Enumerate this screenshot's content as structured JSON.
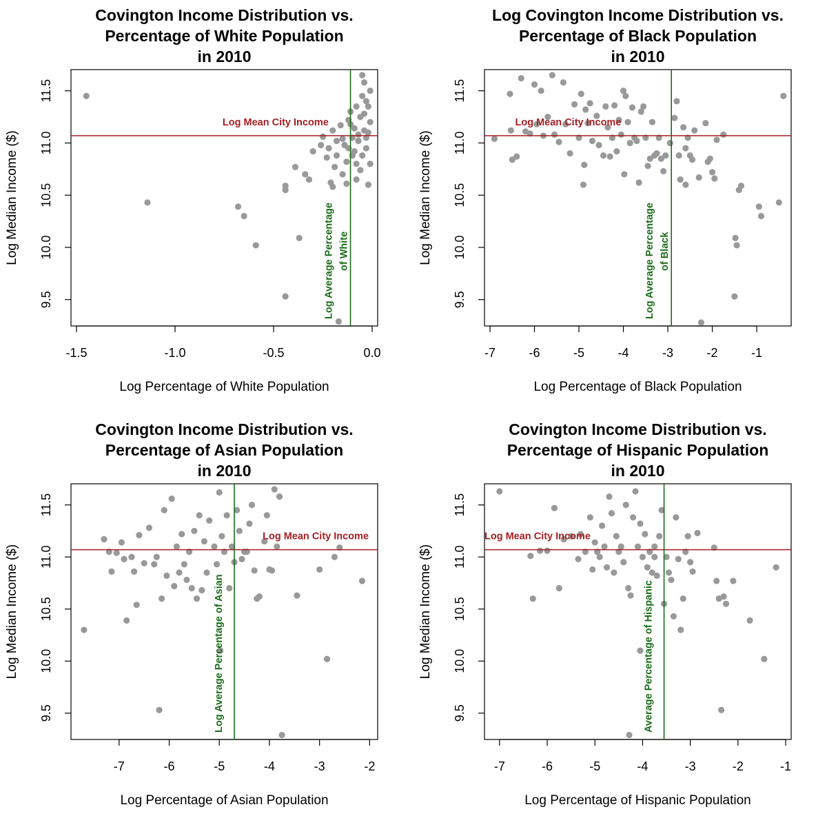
{
  "chart_data": [
    {
      "type": "scatter",
      "title": [
        "Covington Income Distribution vs.",
        "Percentage of White Population",
        "in 2010"
      ],
      "xlabel": "Log Percentage of White Population",
      "ylabel": "Log Median Income ($)",
      "xlim": [
        -1.5,
        0.0
      ],
      "ylim": [
        9.3,
        11.65
      ],
      "xticks": [
        -1.5,
        -1.0,
        -0.5,
        0.0
      ],
      "xtick_labels": [
        "-1.5",
        "-1.0",
        "-0.5",
        "0.0"
      ],
      "yticks": [
        9.5,
        10.0,
        10.5,
        11.0,
        11.5
      ],
      "ytick_labels": [
        "9.5",
        "10.0",
        "10.5",
        "11.0",
        "11.5"
      ],
      "hline": {
        "y": 11.07,
        "label": "Log Mean City Income"
      },
      "vline": {
        "x": -0.11,
        "label": [
          "Log Average Percentage",
          "of White"
        ]
      },
      "point_color": "#999999",
      "hline_color": "#a51e22",
      "vline_color": "#1a6b1a",
      "points": [
        [
          -1.45,
          11.45
        ],
        [
          -1.14,
          10.43
        ],
        [
          -0.68,
          10.39
        ],
        [
          -0.65,
          10.3
        ],
        [
          -0.59,
          10.02
        ],
        [
          -0.44,
          10.59
        ],
        [
          -0.44,
          10.55
        ],
        [
          -0.44,
          9.53
        ],
        [
          -0.37,
          10.09
        ],
        [
          -0.39,
          10.77
        ],
        [
          -0.34,
          10.7
        ],
        [
          -0.32,
          10.65
        ],
        [
          -0.3,
          10.92
        ],
        [
          -0.26,
          10.98
        ],
        [
          -0.25,
          11.06
        ],
        [
          -0.23,
          10.86
        ],
        [
          -0.22,
          10.95
        ],
        [
          -0.21,
          10.62
        ],
        [
          -0.2,
          10.58
        ],
        [
          -0.2,
          11.12
        ],
        [
          -0.19,
          10.77
        ],
        [
          -0.18,
          10.88
        ],
        [
          -0.17,
          9.29
        ],
        [
          -0.16,
          11.17
        ],
        [
          -0.15,
          11.04
        ],
        [
          -0.14,
          10.98
        ],
        [
          -0.13,
          10.82
        ],
        [
          -0.13,
          10.61
        ],
        [
          -0.12,
          11.22
        ],
        [
          -0.11,
          11.3
        ],
        [
          -0.1,
          10.88
        ],
        [
          -0.09,
          11.14
        ],
        [
          -0.08,
          11.35
        ],
        [
          -0.08,
          10.65
        ],
        [
          -0.07,
          11.02
        ],
        [
          -0.06,
          10.74
        ],
        [
          -0.06,
          11.25
        ],
        [
          -0.05,
          11.45
        ],
        [
          -0.05,
          10.88
        ],
        [
          -0.04,
          11.58
        ],
        [
          -0.04,
          11.12
        ],
        [
          -0.03,
          11.05
        ],
        [
          -0.03,
          10.95
        ],
        [
          -0.02,
          11.35
        ],
        [
          -0.02,
          10.6
        ],
        [
          -0.01,
          11.5
        ],
        [
          -0.01,
          11.2
        ],
        [
          -0.01,
          10.8
        ],
        [
          -0.05,
          11.65
        ],
        [
          -0.15,
          10.7
        ],
        [
          -0.12,
          10.95
        ],
        [
          -0.09,
          10.92
        ],
        [
          -0.07,
          11.08
        ],
        [
          -0.04,
          11.28
        ],
        [
          -0.02,
          11.1
        ],
        [
          -0.18,
          11.02
        ],
        [
          -0.11,
          11.18
        ],
        [
          -0.08,
          10.8
        ],
        [
          -0.03,
          11.4
        ],
        [
          -0.1,
          11.05
        ]
      ]
    },
    {
      "type": "scatter",
      "title": [
        "Log Covington Income Distribution vs.",
        "Percentage of Black Population",
        "in 2010"
      ],
      "xlabel": "Log Percentage of Black Population",
      "ylabel": "Log Median Income ($)",
      "xlim": [
        -7.0,
        -0.35
      ],
      "ylim": [
        9.3,
        11.65
      ],
      "xticks": [
        -7,
        -6,
        -5,
        -4,
        -3,
        -2,
        -1
      ],
      "xtick_labels": [
        "-7",
        "-6",
        "-5",
        "-4",
        "-3",
        "-2",
        "-1"
      ],
      "yticks": [
        9.5,
        10.0,
        10.5,
        11.0,
        11.5
      ],
      "ytick_labels": [
        "9.5",
        "10.0",
        "10.5",
        "11.0",
        "11.5"
      ],
      "hline": {
        "y": 11.07,
        "label": "Log Mean City Income"
      },
      "vline": {
        "x": -2.92,
        "label": [
          "Log Average Percentage",
          "of Black"
        ]
      },
      "point_color": "#999999",
      "hline_color": "#a51e22",
      "vline_color": "#1a6b1a",
      "points": [
        [
          -6.9,
          11.04
        ],
        [
          -6.55,
          11.47
        ],
        [
          -6.53,
          11.12
        ],
        [
          -6.5,
          10.84
        ],
        [
          -6.4,
          10.87
        ],
        [
          -6.3,
          11.62
        ],
        [
          -6.2,
          11.11
        ],
        [
          -6.1,
          11.09
        ],
        [
          -6.0,
          11.56
        ],
        [
          -5.95,
          11.18
        ],
        [
          -5.85,
          11.5
        ],
        [
          -5.8,
          11.07
        ],
        [
          -5.7,
          11.25
        ],
        [
          -5.6,
          11.65
        ],
        [
          -5.55,
          11.08
        ],
        [
          -5.45,
          11.01
        ],
        [
          -5.35,
          11.58
        ],
        [
          -5.3,
          11.18
        ],
        [
          -5.2,
          10.9
        ],
        [
          -5.1,
          11.37
        ],
        [
          -5.0,
          11.05
        ],
        [
          -4.95,
          11.47
        ],
        [
          -4.9,
          10.6
        ],
        [
          -4.88,
          10.79
        ],
        [
          -4.85,
          11.32
        ],
        [
          -4.8,
          11.19
        ],
        [
          -4.75,
          11.38
        ],
        [
          -4.7,
          11.02
        ],
        [
          -4.6,
          11.26
        ],
        [
          -4.55,
          10.98
        ],
        [
          -4.45,
          10.88
        ],
        [
          -4.4,
          11.35
        ],
        [
          -4.35,
          11.15
        ],
        [
          -4.3,
          10.87
        ],
        [
          -4.25,
          11.05
        ],
        [
          -4.2,
          11.36
        ],
        [
          -4.15,
          10.92
        ],
        [
          -4.1,
          11.22
        ],
        [
          -4.05,
          11.08
        ],
        [
          -4.0,
          11.5
        ],
        [
          -3.98,
          10.7
        ],
        [
          -3.95,
          11.45
        ],
        [
          -3.9,
          11.2
        ],
        [
          -3.85,
          11.0
        ],
        [
          -3.8,
          11.34
        ],
        [
          -3.75,
          11.05
        ],
        [
          -3.7,
          11.02
        ],
        [
          -3.65,
          10.62
        ],
        [
          -3.6,
          11.3
        ],
        [
          -3.55,
          11.35
        ],
        [
          -3.5,
          11.05
        ],
        [
          -3.45,
          10.78
        ],
        [
          -3.4,
          10.85
        ],
        [
          -3.35,
          11.2
        ],
        [
          -3.3,
          10.88
        ],
        [
          -3.25,
          10.9
        ],
        [
          -3.2,
          11.05
        ],
        [
          -3.15,
          10.85
        ],
        [
          -3.1,
          10.73
        ],
        [
          -3.05,
          10.88
        ],
        [
          -2.95,
          11.0
        ],
        [
          -2.85,
          11.24
        ],
        [
          -2.8,
          11.4
        ],
        [
          -2.75,
          10.88
        ],
        [
          -2.72,
          10.65
        ],
        [
          -2.65,
          11.15
        ],
        [
          -2.6,
          10.6
        ],
        [
          -2.55,
          11.05
        ],
        [
          -2.5,
          10.88
        ],
        [
          -2.45,
          10.84
        ],
        [
          -2.4,
          11.12
        ],
        [
          -2.3,
          10.67
        ],
        [
          -2.25,
          9.28
        ],
        [
          -2.15,
          11.19
        ],
        [
          -2.1,
          10.82
        ],
        [
          -2.0,
          10.72
        ],
        [
          -1.95,
          10.66
        ],
        [
          -1.9,
          11.03
        ],
        [
          -1.75,
          11.08
        ],
        [
          -1.5,
          9.53
        ],
        [
          -1.48,
          10.09
        ],
        [
          -1.45,
          10.02
        ],
        [
          -1.4,
          10.55
        ],
        [
          -1.35,
          10.59
        ],
        [
          -0.95,
          10.39
        ],
        [
          -0.9,
          10.3
        ],
        [
          -0.5,
          10.43
        ],
        [
          -0.4,
          11.45
        ],
        [
          -2.05,
          10.85
        ],
        [
          -2.6,
          10.95
        ]
      ]
    },
    {
      "type": "scatter",
      "title": [
        "Covington Income Distribution vs.",
        "Percentage of Asian Population",
        "in 2010"
      ],
      "xlabel": "Log Percentage of Asian Population",
      "ylabel": "Log Median Income ($)",
      "xlim": [
        -7.85,
        -1.95
      ],
      "ylim": [
        9.3,
        11.65
      ],
      "xticks": [
        -7,
        -6,
        -5,
        -4,
        -3,
        -2
      ],
      "xtick_labels": [
        "-7",
        "-6",
        "-5",
        "-4",
        "-3",
        "-2"
      ],
      "yticks": [
        9.5,
        10.0,
        10.5,
        11.0,
        11.5
      ],
      "ytick_labels": [
        "9.5",
        "10.0",
        "10.5",
        "11.0",
        "11.5"
      ],
      "hline": {
        "y": 11.07,
        "label": "Log Mean City Income"
      },
      "vline": {
        "x": -4.7,
        "label": [
          "Log Average Percentage of Asian"
        ]
      },
      "point_color": "#999999",
      "hline_color": "#a51e22",
      "vline_color": "#1a6b1a",
      "points": [
        [
          -7.7,
          10.3
        ],
        [
          -7.3,
          11.17
        ],
        [
          -7.2,
          11.05
        ],
        [
          -7.15,
          10.86
        ],
        [
          -7.05,
          11.04
        ],
        [
          -6.95,
          11.14
        ],
        [
          -6.9,
          10.98
        ],
        [
          -6.85,
          10.39
        ],
        [
          -6.75,
          11.0
        ],
        [
          -6.7,
          10.86
        ],
        [
          -6.65,
          10.54
        ],
        [
          -6.6,
          11.21
        ],
        [
          -6.5,
          10.94
        ],
        [
          -6.4,
          11.28
        ],
        [
          -6.3,
          10.93
        ],
        [
          -6.25,
          11.0
        ],
        [
          -6.2,
          9.53
        ],
        [
          -6.15,
          10.6
        ],
        [
          -6.1,
          11.45
        ],
        [
          -6.05,
          10.82
        ],
        [
          -5.95,
          11.56
        ],
        [
          -5.9,
          10.72
        ],
        [
          -5.85,
          11.1
        ],
        [
          -5.8,
          10.85
        ],
        [
          -5.75,
          11.22
        ],
        [
          -5.7,
          10.93
        ],
        [
          -5.65,
          10.78
        ],
        [
          -5.6,
          11.05
        ],
        [
          -5.55,
          10.7
        ],
        [
          -5.5,
          11.25
        ],
        [
          -5.45,
          10.6
        ],
        [
          -5.4,
          11.4
        ],
        [
          -5.35,
          10.68
        ],
        [
          -5.3,
          11.15
        ],
        [
          -5.25,
          10.85
        ],
        [
          -5.2,
          11.35
        ],
        [
          -5.1,
          11.1
        ],
        [
          -5.05,
          10.93
        ],
        [
          -5.0,
          11.62
        ],
        [
          -4.98,
          10.1
        ],
        [
          -4.95,
          11.2
        ],
        [
          -4.9,
          11.05
        ],
        [
          -4.85,
          11.4
        ],
        [
          -4.8,
          10.7
        ],
        [
          -4.75,
          11.1
        ],
        [
          -4.7,
          10.95
        ],
        [
          -4.65,
          11.45
        ],
        [
          -4.6,
          11.25
        ],
        [
          -4.55,
          10.98
        ],
        [
          -4.5,
          11.05
        ],
        [
          -4.4,
          11.32
        ],
        [
          -4.35,
          11.5
        ],
        [
          -4.3,
          10.87
        ],
        [
          -4.25,
          10.6
        ],
        [
          -4.2,
          10.62
        ],
        [
          -4.1,
          11.15
        ],
        [
          -4.05,
          11.4
        ],
        [
          -4.0,
          10.88
        ],
        [
          -3.9,
          11.65
        ],
        [
          -3.85,
          11.1
        ],
        [
          -3.8,
          11.58
        ],
        [
          -3.75,
          9.29
        ],
        [
          -3.45,
          10.63
        ],
        [
          -3.0,
          10.88
        ],
        [
          -2.85,
          10.02
        ],
        [
          -2.7,
          11.0
        ],
        [
          -2.6,
          11.09
        ],
        [
          -2.15,
          10.77
        ],
        [
          -3.95,
          10.87
        ],
        [
          -4.45,
          11.05
        ]
      ]
    },
    {
      "type": "scatter",
      "title": [
        "Covington Income Distribution vs.",
        "Percentage of Hispanic Population",
        "in 2010"
      ],
      "xlabel": "Log Percentage of Hispanic Population",
      "ylabel": "Log Median Income ($)",
      "xlim": [
        -7.2,
        -1.0
      ],
      "ylim": [
        9.3,
        11.65
      ],
      "xticks": [
        -7,
        -6,
        -5,
        -4,
        -3,
        -2,
        -1
      ],
      "xtick_labels": [
        "-7",
        "-6",
        "-5",
        "-4",
        "-3",
        "-2",
        "-1"
      ],
      "yticks": [
        9.5,
        10.0,
        10.5,
        11.0,
        11.5
      ],
      "ytick_labels": [
        "9.5",
        "10.0",
        "10.5",
        "11.0",
        "11.5"
      ],
      "hline": {
        "y": 11.07,
        "label": "Log Mean City Income"
      },
      "vline": {
        "x": -3.55,
        "label": [
          "Average Percentage of Hispanic"
        ]
      },
      "point_color": "#999999",
      "hline_color": "#a51e22",
      "vline_color": "#1a6b1a",
      "points": [
        [
          -7.0,
          11.63
        ],
        [
          -6.35,
          11.01
        ],
        [
          -6.3,
          10.6
        ],
        [
          -6.15,
          11.06
        ],
        [
          -6.0,
          11.06
        ],
        [
          -5.85,
          11.47
        ],
        [
          -5.75,
          10.7
        ],
        [
          -5.65,
          11.17
        ],
        [
          -5.5,
          11.2
        ],
        [
          -5.35,
          10.98
        ],
        [
          -5.3,
          11.22
        ],
        [
          -5.2,
          11.05
        ],
        [
          -5.1,
          11.38
        ],
        [
          -5.05,
          10.88
        ],
        [
          -5.0,
          11.14
        ],
        [
          -4.95,
          11.05
        ],
        [
          -4.9,
          11.0
        ],
        [
          -4.85,
          11.3
        ],
        [
          -4.8,
          11.1
        ],
        [
          -4.75,
          10.9
        ],
        [
          -4.7,
          11.58
        ],
        [
          -4.65,
          11.42
        ],
        [
          -4.6,
          10.85
        ],
        [
          -4.55,
          11.2
        ],
        [
          -4.5,
          11.05
        ],
        [
          -4.45,
          11.1
        ],
        [
          -4.4,
          10.95
        ],
        [
          -4.35,
          11.5
        ],
        [
          -4.3,
          10.7
        ],
        [
          -4.28,
          9.29
        ],
        [
          -4.25,
          10.63
        ],
        [
          -4.2,
          11.38
        ],
        [
          -4.15,
          11.63
        ],
        [
          -4.1,
          11.1
        ],
        [
          -4.05,
          11.32
        ],
        [
          -4.0,
          11.0
        ],
        [
          -3.95,
          11.22
        ],
        [
          -3.9,
          10.9
        ],
        [
          -3.85,
          11.05
        ],
        [
          -3.8,
          10.85
        ],
        [
          -3.75,
          11.1
        ],
        [
          -3.7,
          10.82
        ],
        [
          -3.65,
          11.2
        ],
        [
          -3.6,
          11.45
        ],
        [
          -3.55,
          10.55
        ],
        [
          -3.5,
          11.0
        ],
        [
          -3.45,
          10.85
        ],
        [
          -3.4,
          10.78
        ],
        [
          -3.35,
          10.43
        ],
        [
          -3.3,
          11.38
        ],
        [
          -3.25,
          10.98
        ],
        [
          -3.2,
          10.3
        ],
        [
          -3.15,
          10.6
        ],
        [
          -3.1,
          11.05
        ],
        [
          -3.05,
          11.2
        ],
        [
          -3.0,
          10.95
        ],
        [
          -2.95,
          10.86
        ],
        [
          -2.85,
          11.23
        ],
        [
          -2.5,
          11.09
        ],
        [
          -2.45,
          10.77
        ],
        [
          -2.4,
          10.6
        ],
        [
          -2.35,
          9.53
        ],
        [
          -2.3,
          10.62
        ],
        [
          -2.25,
          10.55
        ],
        [
          -2.1,
          10.77
        ],
        [
          -1.75,
          10.39
        ],
        [
          -1.45,
          10.02
        ],
        [
          -1.2,
          10.9
        ],
        [
          -4.05,
          10.1
        ],
        [
          -3.75,
          11.0
        ]
      ]
    }
  ]
}
